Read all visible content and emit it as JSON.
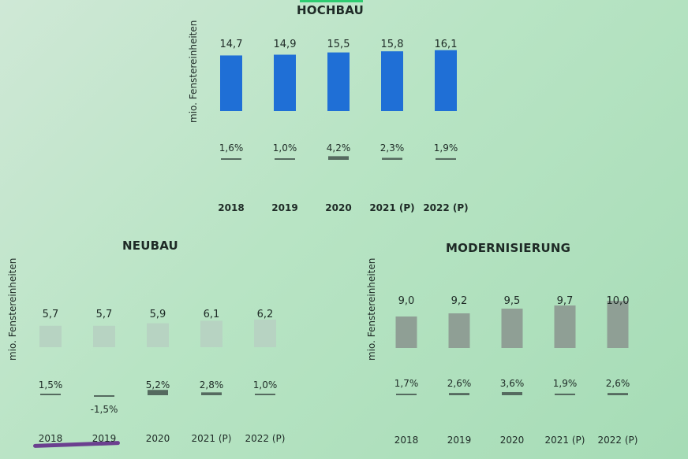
{
  "chart_data": [
    {
      "type": "bar",
      "title": "HOCHBAU",
      "ylabel": "mio. Fenstereinheiten",
      "categories": [
        "2018",
        "2019",
        "2020",
        "2021 (P)",
        "2022 (P)"
      ],
      "values": [
        14.7,
        14.9,
        15.5,
        15.8,
        16.1
      ],
      "value_labels": [
        "14,7",
        "14,9",
        "15,5",
        "15,8",
        "16,1"
      ],
      "growth": [
        1.6,
        1.0,
        4.2,
        2.3,
        1.9
      ],
      "growth_labels": [
        "1,6%",
        "1,0%",
        "4,2%",
        "2,3%",
        "1,9%"
      ],
      "color": "#1f6fd6",
      "growth_color": "#556a5f"
    },
    {
      "type": "bar",
      "title": "NEUBAU",
      "ylabel": "mio. Fenstereinheiten",
      "categories": [
        "2018",
        "2019",
        "2020",
        "2021 (P)",
        "2022 (P)"
      ],
      "values": [
        5.7,
        5.7,
        5.9,
        6.1,
        6.2
      ],
      "value_labels": [
        "5,7",
        "5,7",
        "5,9",
        "6,1",
        "6,2"
      ],
      "growth": [
        1.5,
        -1.5,
        5.2,
        2.8,
        1.0
      ],
      "growth_labels": [
        "1,5%",
        "-1,5%",
        "5,2%",
        "2,8%",
        "1,0%"
      ],
      "color": "#b7d3c2",
      "growth_color": "#556a5f"
    },
    {
      "type": "bar",
      "title": "MODERNISIERUNG",
      "ylabel": "mio. Fenstereinheiten",
      "categories": [
        "2018",
        "2019",
        "2020",
        "2021 (P)",
        "2022 (P)"
      ],
      "values": [
        9.0,
        9.2,
        9.5,
        9.7,
        10.0
      ],
      "value_labels": [
        "9,0",
        "9,2",
        "9,5",
        "9,7",
        "10,0"
      ],
      "growth": [
        1.7,
        2.6,
        3.6,
        1.9,
        2.6
      ],
      "growth_labels": [
        "1,7%",
        "2,6%",
        "3,6%",
        "1,9%",
        "2,6%"
      ],
      "color": "#8f9f95",
      "growth_color": "#556a5f"
    }
  ]
}
